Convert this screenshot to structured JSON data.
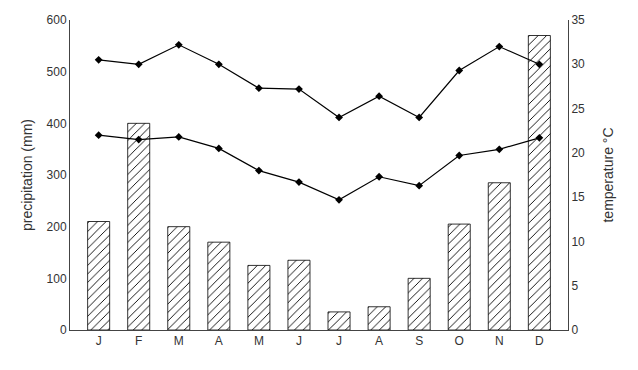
{
  "chart_data": {
    "type": "bar",
    "categories": [
      "J",
      "F",
      "M",
      "A",
      "M",
      "J",
      "J",
      "A",
      "S",
      "O",
      "N",
      "D"
    ],
    "series": [
      {
        "type": "bar",
        "color": "white",
        "values": [
          210,
          400,
          200,
          170,
          125,
          135,
          35,
          45,
          100,
          205,
          285,
          570
        ]
      },
      {
        "type": "line",
        "axis": "y2",
        "color": "black",
        "marker": "diamond",
        "values": [
          30.5,
          30.0,
          32.2,
          30.0,
          27.3,
          27.2,
          24.0,
          26.4,
          24.0,
          29.3,
          32.0,
          30.0
        ]
      },
      {
        "type": "line",
        "axis": "y2",
        "color": "black",
        "marker": "diamond",
        "values": [
          22.0,
          21.5,
          21.8,
          20.5,
          18.0,
          16.7,
          14.7,
          17.3,
          16.3,
          19.7,
          20.4,
          21.7
        ]
      }
    ],
    "ylabel": "precipitation (mm)",
    "y2label": "temperature °C",
    "ylim": [
      0,
      600
    ],
    "yticks": [
      0,
      100,
      200,
      300,
      400,
      500,
      600
    ],
    "y2lim": [
      0,
      35
    ],
    "y2ticks": [
      0,
      5,
      10,
      15,
      20,
      25,
      30,
      35
    ],
    "grid": false
  }
}
